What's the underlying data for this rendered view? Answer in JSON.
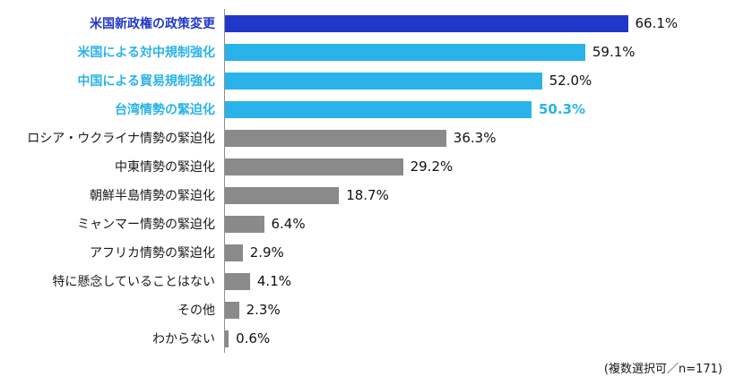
{
  "colors": {
    "primary_dark_blue": "#2038c8",
    "secondary_cyan": "#29b3ea",
    "neutral_gray": "#8a8a8a",
    "text": "#111111",
    "axis_line": "#8f8f8f"
  },
  "chart_data": {
    "type": "bar",
    "orientation": "horizontal",
    "title": "",
    "xlabel": "",
    "ylabel": "",
    "xlim": [
      0,
      70
    ],
    "grid": false,
    "legend": false,
    "footnote": "(複数選択可／n=171)",
    "categories": [
      "米国新政権の政策変更",
      "米国による対中規制強化",
      "中国による貿易規制強化",
      "台湾情勢の緊迫化",
      "ロシア・ウクライナ情勢の緊迫化",
      "中東情勢の緊迫化",
      "朝鮮半島情勢の緊迫化",
      "ミャンマー情勢の緊迫化",
      "アフリカ情勢の緊迫化",
      "特に懸念していることはない",
      "その他",
      "わからない"
    ],
    "values": [
      66.1,
      59.1,
      52.0,
      50.3,
      36.3,
      29.2,
      18.7,
      6.4,
      2.9,
      4.1,
      2.3,
      0.6
    ],
    "items": [
      {
        "label": "米国新政権の政策変更",
        "value": 66.1,
        "display": "66.1%",
        "bar_color": "#2038c8",
        "label_color": "#2038c8",
        "label_bold": true,
        "value_color": "#111111",
        "value_bold": false
      },
      {
        "label": "米国による対中規制強化",
        "value": 59.1,
        "display": "59.1%",
        "bar_color": "#29b3ea",
        "label_color": "#29b3ea",
        "label_bold": true,
        "value_color": "#111111",
        "value_bold": false
      },
      {
        "label": "中国による貿易規制強化",
        "value": 52.0,
        "display": "52.0%",
        "bar_color": "#29b3ea",
        "label_color": "#29b3ea",
        "label_bold": true,
        "value_color": "#111111",
        "value_bold": false
      },
      {
        "label": "台湾情勢の緊迫化",
        "value": 50.3,
        "display": "50.3%",
        "bar_color": "#29b3ea",
        "label_color": "#29b3ea",
        "label_bold": true,
        "value_color": "#29b3ea",
        "value_bold": true
      },
      {
        "label": "ロシア・ウクライナ情勢の緊迫化",
        "value": 36.3,
        "display": "36.3%",
        "bar_color": "#8a8a8a",
        "label_color": "#1a1a1a",
        "label_bold": false,
        "value_color": "#111111",
        "value_bold": false
      },
      {
        "label": "中東情勢の緊迫化",
        "value": 29.2,
        "display": "29.2%",
        "bar_color": "#8a8a8a",
        "label_color": "#1a1a1a",
        "label_bold": false,
        "value_color": "#111111",
        "value_bold": false
      },
      {
        "label": "朝鮮半島情勢の緊迫化",
        "value": 18.7,
        "display": "18.7%",
        "bar_color": "#8a8a8a",
        "label_color": "#1a1a1a",
        "label_bold": false,
        "value_color": "#111111",
        "value_bold": false
      },
      {
        "label": "ミャンマー情勢の緊迫化",
        "value": 6.4,
        "display": "6.4%",
        "bar_color": "#8a8a8a",
        "label_color": "#1a1a1a",
        "label_bold": false,
        "value_color": "#111111",
        "value_bold": false
      },
      {
        "label": "アフリカ情勢の緊迫化",
        "value": 2.9,
        "display": "2.9%",
        "bar_color": "#8a8a8a",
        "label_color": "#1a1a1a",
        "label_bold": false,
        "value_color": "#111111",
        "value_bold": false
      },
      {
        "label": "特に懸念していることはない",
        "value": 4.1,
        "display": "4.1%",
        "bar_color": "#8a8a8a",
        "label_color": "#1a1a1a",
        "label_bold": false,
        "value_color": "#111111",
        "value_bold": false
      },
      {
        "label": "その他",
        "value": 2.3,
        "display": "2.3%",
        "bar_color": "#8a8a8a",
        "label_color": "#1a1a1a",
        "label_bold": false,
        "value_color": "#111111",
        "value_bold": false
      },
      {
        "label": "わからない",
        "value": 0.6,
        "display": "0.6%",
        "bar_color": "#8a8a8a",
        "label_color": "#1a1a1a",
        "label_bold": false,
        "value_color": "#111111",
        "value_bold": false
      }
    ]
  }
}
